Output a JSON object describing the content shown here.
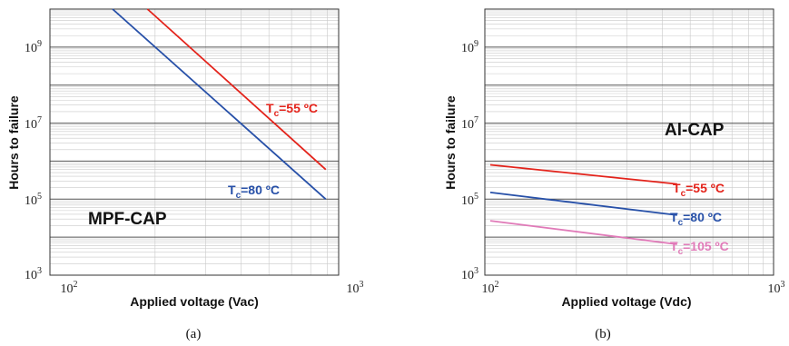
{
  "chart_data": [
    {
      "panel": "(a)",
      "type": "line",
      "xlabel": "Applied voltage (Vac)",
      "ylabel": "Hours to failure",
      "xscale": "log",
      "yscale": "log",
      "xlim": [
        100,
        1000
      ],
      "ylim": [
        1000,
        10000000000
      ],
      "xticks": [
        {
          "value": 100,
          "base": "10",
          "exp": "2"
        },
        {
          "value": 1000,
          "base": "10",
          "exp": "3"
        }
      ],
      "yticks": [
        {
          "value": 1000,
          "base": "10",
          "exp": "3"
        },
        {
          "value": 100000,
          "base": "10",
          "exp": "5"
        },
        {
          "value": 10000000,
          "base": "10",
          "exp": "7"
        },
        {
          "value": 1000000000,
          "base": "10",
          "exp": "9"
        }
      ],
      "grid": true,
      "annotation": "MPF-CAP",
      "series": [
        {
          "name": "Tc=55 ºC",
          "label_main": "T",
          "label_sub": "c",
          "label_rest": "=55 ºC",
          "color": "#e3231b",
          "x": [
            188,
            790
          ],
          "y": [
            10000000000,
            600000
          ]
        },
        {
          "name": "Tc=80 ºC",
          "label_main": "T",
          "label_sub": "c",
          "label_rest": "=80 ºC",
          "color": "#2750a8",
          "x": [
            142,
            790
          ],
          "y": [
            10000000000,
            100000
          ]
        }
      ]
    },
    {
      "panel": "(b)",
      "type": "line",
      "xlabel": "Applied voltage (Vdc)",
      "ylabel": "Hours to failure",
      "xscale": "log",
      "yscale": "log",
      "xlim": [
        100,
        1000
      ],
      "ylim": [
        1000,
        10000000000
      ],
      "xticks": [
        {
          "value": 100,
          "base": "10",
          "exp": "2"
        },
        {
          "value": 1000,
          "base": "10",
          "exp": "3"
        }
      ],
      "yticks": [
        {
          "value": 1000,
          "base": "10",
          "exp": "3"
        },
        {
          "value": 100000,
          "base": "10",
          "exp": "5"
        },
        {
          "value": 10000000,
          "base": "10",
          "exp": "7"
        },
        {
          "value": 1000000000,
          "base": "10",
          "exp": "9"
        }
      ],
      "grid": true,
      "annotation": "Al-CAP",
      "series": [
        {
          "name": "Tc=55 ºC",
          "label_main": "T",
          "label_sub": "c",
          "label_rest": "=55 ºC",
          "color": "#e3231b",
          "x": [
            100,
            450
          ],
          "y": [
            800000,
            250000
          ]
        },
        {
          "name": "Tc=80 ºC",
          "label_main": "T",
          "label_sub": "c",
          "label_rest": "=80 ºC",
          "color": "#2750a8",
          "x": [
            100,
            450
          ],
          "y": [
            150000,
            38000
          ]
        },
        {
          "name": "Tc=105 ºC",
          "label_main": "T",
          "label_sub": "c",
          "label_rest": "=105 ºC",
          "color": "#e07ab8",
          "x": [
            100,
            450
          ],
          "y": [
            27000,
            6500
          ]
        }
      ]
    }
  ]
}
